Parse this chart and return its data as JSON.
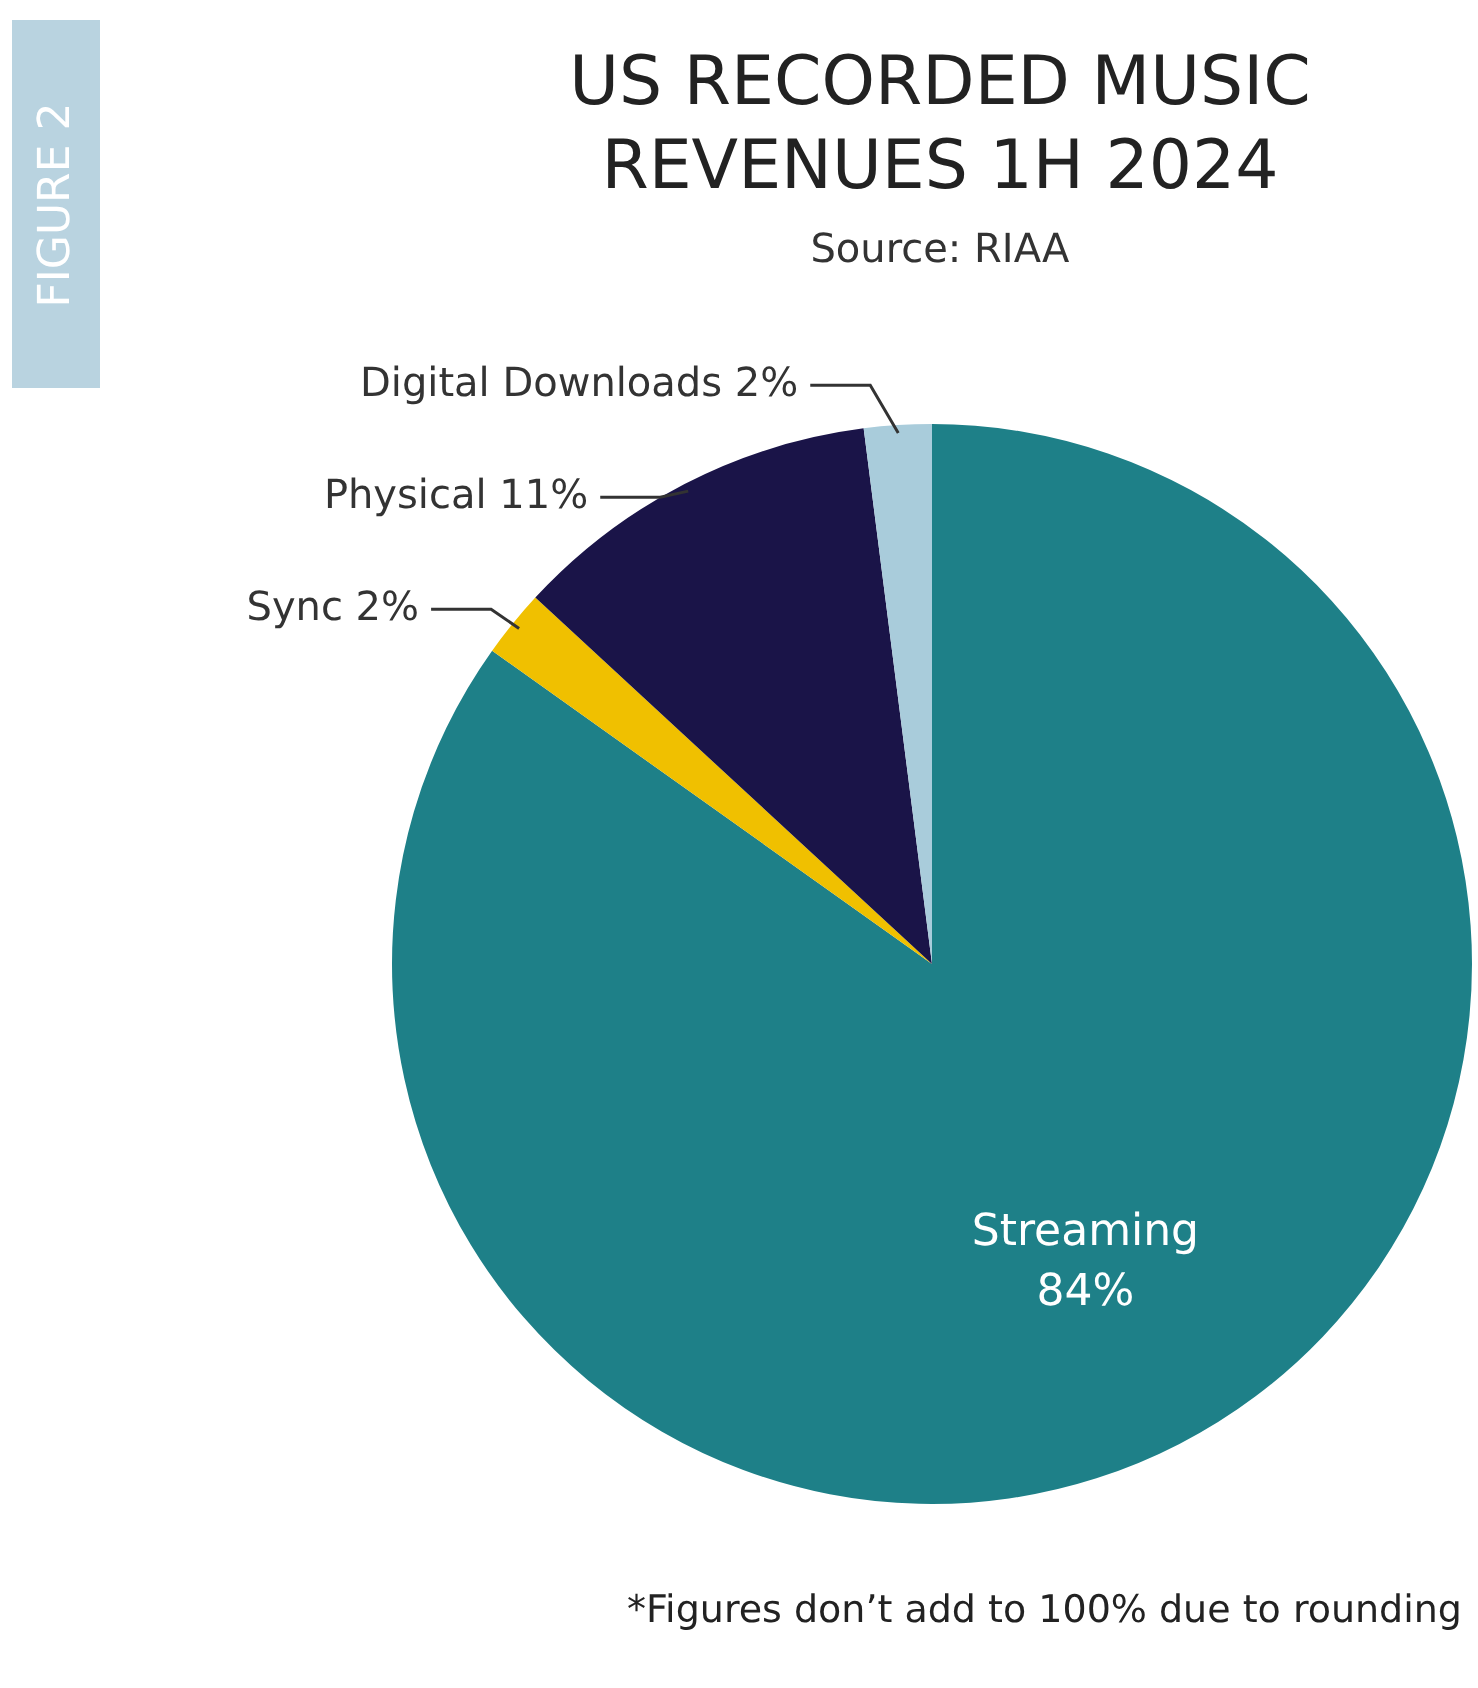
{
  "chart_data": {
    "type": "pie",
    "title": "US RECORDED MUSIC REVENUES 1H 2024",
    "subtitle": "Source: RIAA",
    "categories": [
      "Streaming",
      "Sync",
      "Physical",
      "Digital Downloads"
    ],
    "values": [
      84,
      2,
      11,
      2
    ],
    "colors": [
      "#1e8088",
      "#f0c000",
      "#1a1448",
      "#a9ccdb"
    ],
    "value_labels": [
      "84%",
      "2%",
      "11%",
      "2%"
    ],
    "legend": false,
    "annotations": [
      "FIGURE 2",
      "*Figures don’t add to 100% due to rounding"
    ]
  }
}
